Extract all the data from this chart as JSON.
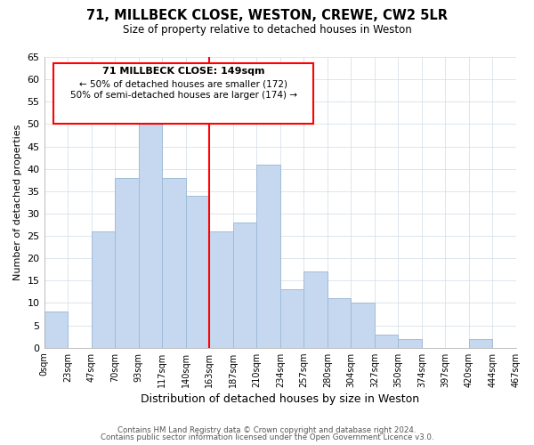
{
  "title": "71, MILLBECK CLOSE, WESTON, CREWE, CW2 5LR",
  "subtitle": "Size of property relative to detached houses in Weston",
  "xlabel": "Distribution of detached houses by size in Weston",
  "ylabel": "Number of detached properties",
  "footer_lines": [
    "Contains HM Land Registry data © Crown copyright and database right 2024.",
    "Contains public sector information licensed under the Open Government Licence v3.0."
  ],
  "bin_labels": [
    "0sqm",
    "23sqm",
    "47sqm",
    "70sqm",
    "93sqm",
    "117sqm",
    "140sqm",
    "163sqm",
    "187sqm",
    "210sqm",
    "234sqm",
    "257sqm",
    "280sqm",
    "304sqm",
    "327sqm",
    "350sqm",
    "374sqm",
    "397sqm",
    "420sqm",
    "444sqm",
    "467sqm"
  ],
  "bar_values": [
    8,
    0,
    26,
    38,
    51,
    38,
    34,
    26,
    28,
    41,
    13,
    17,
    11,
    10,
    3,
    2,
    0,
    0,
    2,
    0
  ],
  "bar_color": "#c5d8f0",
  "bar_edge_color": "#a0bcd8",
  "ylim": [
    0,
    65
  ],
  "yticks": [
    0,
    5,
    10,
    15,
    20,
    25,
    30,
    35,
    40,
    45,
    50,
    55,
    60,
    65
  ],
  "redline_bin": 6.5,
  "annotation_title": "71 MILLBECK CLOSE: 149sqm",
  "annotation_line1": "← 50% of detached houses are smaller (172)",
  "annotation_line2": "50% of semi-detached houses are larger (174) →"
}
